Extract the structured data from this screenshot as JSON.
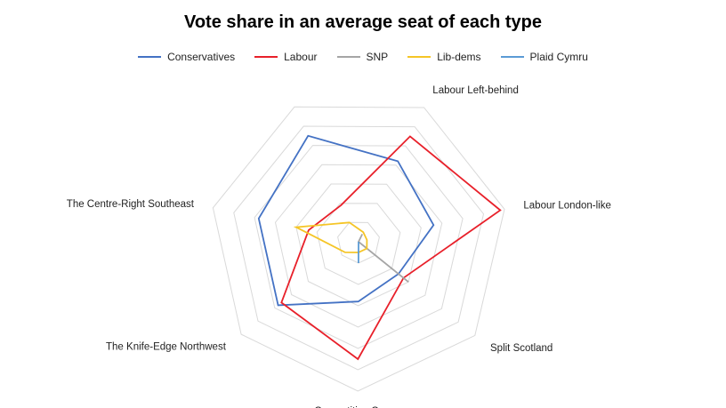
{
  "chart_data": {
    "type": "radar",
    "title": "Vote share in an average seat of each type",
    "categories": [
      "Labour Left-behind",
      "Labour London-like",
      "Split Scotland",
      "Competitive Cymru",
      "The Knife-Edge Northwest",
      "The Centre-Right Southeast",
      ""
    ],
    "rlim": [
      0,
      70
    ],
    "rings": 7,
    "grid": true,
    "legend_position": "top",
    "series": [
      {
        "name": "Conservatives",
        "color": "#4472C4",
        "values": [
          42,
          36,
          24,
          28,
          48,
          48,
          55
        ]
      },
      {
        "name": "Labour",
        "color": "#E8202A",
        "values": [
          55,
          68,
          27,
          55,
          46,
          24,
          19
        ]
      },
      {
        "name": "SNP",
        "color": "#A5A5A5",
        "values": [
          4,
          0,
          30,
          0,
          0,
          0,
          0
        ]
      },
      {
        "name": "Lib-dems",
        "color": "#F5C526",
        "values": [
          5,
          4,
          5,
          5,
          8,
          30,
          10
        ]
      },
      {
        "name": "Plaid Cymru",
        "color": "#5B9BD5",
        "values": [
          0,
          0,
          0,
          10,
          0,
          0,
          0
        ]
      }
    ]
  }
}
